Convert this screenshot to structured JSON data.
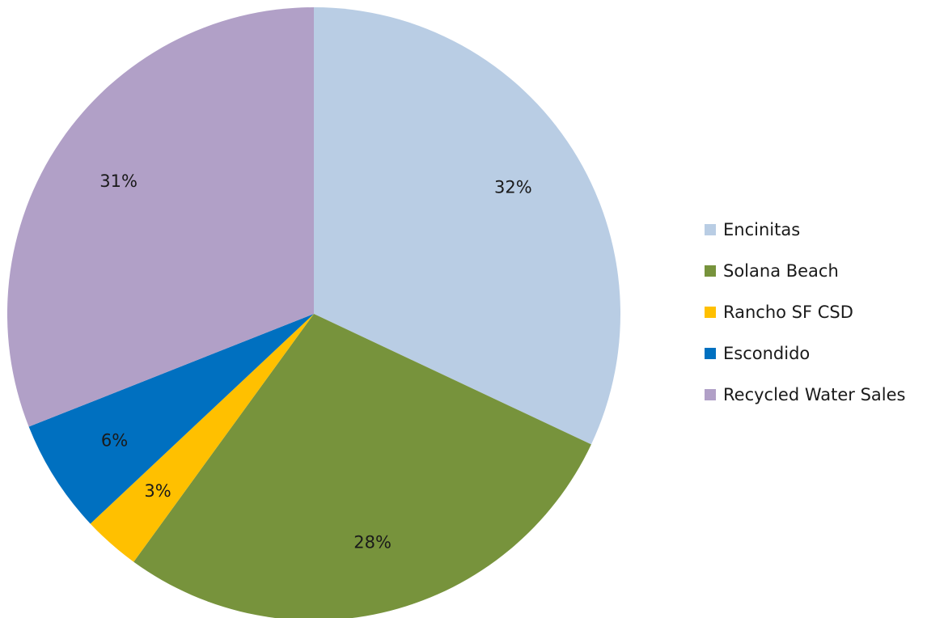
{
  "chart_data": {
    "type": "pie",
    "title": "",
    "legend_position": "right",
    "start_angle": "12 o'clock",
    "direction": "clockwise",
    "slices": [
      {
        "label": "Encinitas",
        "value": 32,
        "value_label": "32%",
        "color": "#b9cde4"
      },
      {
        "label": "Solana Beach",
        "value": 28,
        "value_label": "28%",
        "color": "#77933c"
      },
      {
        "label": "Rancho SF CSD",
        "value": 3,
        "value_label": "3%",
        "color": "#ffc000"
      },
      {
        "label": "Escondido",
        "value": 6,
        "value_label": "6%",
        "color": "#0070c0"
      },
      {
        "label": "Recycled Water Sales",
        "value": 31,
        "value_label": "31%",
        "color": "#b1a0c7"
      }
    ]
  }
}
